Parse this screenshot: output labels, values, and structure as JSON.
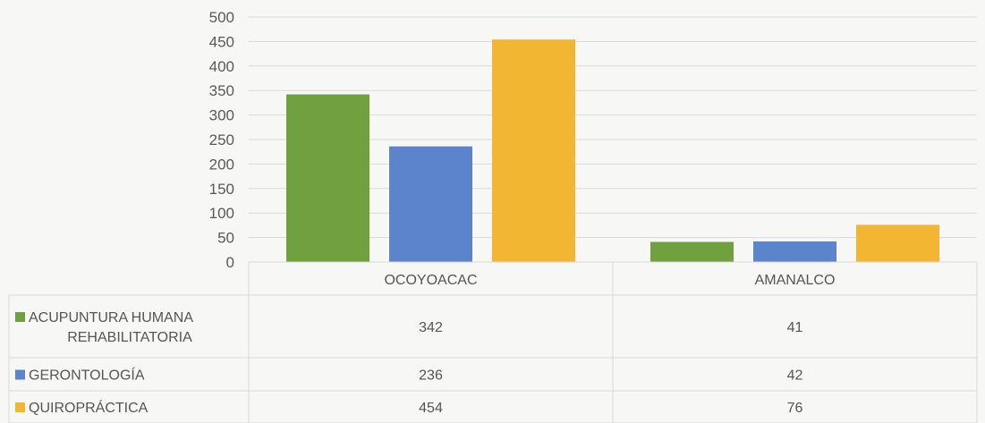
{
  "chart_data": {
    "type": "bar",
    "categories": [
      "OCOYOACAC",
      "AMANALCO"
    ],
    "series": [
      {
        "name": "ACUPUNTURA HUMANA REHABILITATORIA",
        "legend_lines": [
          "ACUPUNTURA HUMANA",
          "REHABILITATORIA"
        ],
        "color": "#70a13e",
        "values": [
          342,
          41
        ]
      },
      {
        "name": "GERONTOLOGÍA",
        "legend_lines": [
          "GERONTOLOGÍA"
        ],
        "color": "#5b84cc",
        "values": [
          236,
          42
        ]
      },
      {
        "name": "QUIROPRÁCTICA",
        "legend_lines": [
          "QUIROPRÁCTICA"
        ],
        "color": "#f2b632",
        "values": [
          454,
          76
        ]
      }
    ],
    "yticks": [
      "0",
      "50",
      "100",
      "150",
      "200",
      "250",
      "300",
      "350",
      "400",
      "450",
      "500"
    ],
    "ylim": [
      0,
      500
    ],
    "grid": true,
    "data_table": true,
    "title": "",
    "xlabel": "",
    "ylabel": ""
  }
}
